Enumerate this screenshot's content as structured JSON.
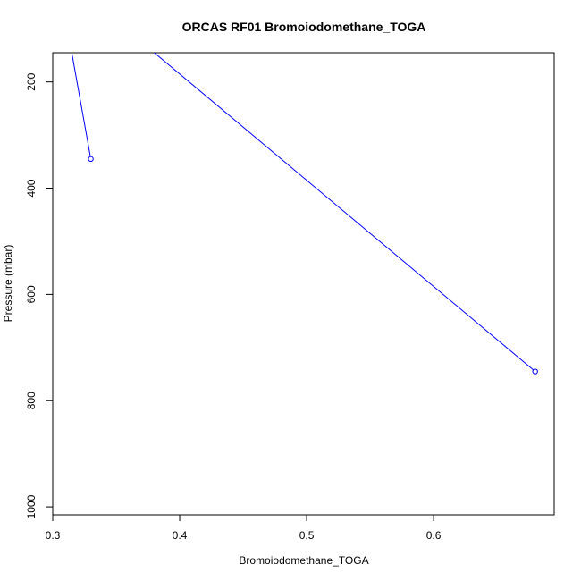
{
  "chart_data": {
    "type": "line",
    "title": "ORCAS RF01 Bromoiodomethane_TOGA",
    "xlabel": "Bromoiodomethane_TOGA",
    "ylabel": "Pressure (mbar)",
    "xlim": [
      0.3,
      0.695
    ],
    "ylim": [
      1015,
      145
    ],
    "y_reversed": true,
    "x_ticks": [
      0.3,
      0.4,
      0.5,
      0.6
    ],
    "y_ticks": [
      200,
      400,
      600,
      800,
      1000
    ],
    "grid": false,
    "series": [
      {
        "color": "#0000ff",
        "segments": [
          {
            "x": [
              0.315,
              0.33
            ],
            "y": [
              145,
              345
            ]
          },
          {
            "x": [
              0.38,
              0.68
            ],
            "y": [
              145,
              745
            ]
          }
        ],
        "points": [
          {
            "x": 0.33,
            "y": 345
          },
          {
            "x": 0.68,
            "y": 745
          }
        ]
      }
    ]
  }
}
